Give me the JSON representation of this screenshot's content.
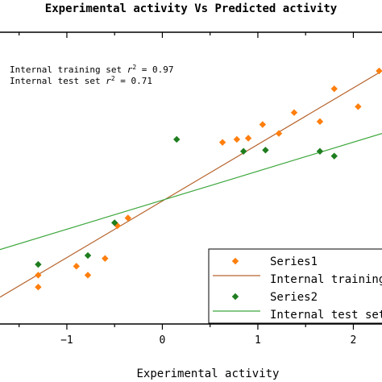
{
  "chart_data": {
    "type": "scatter",
    "title": "Experimental activity Vs Predicted activity",
    "xlabel": "Experimental activity",
    "ylabel": "",
    "xlim": [
      -1.7,
      2.3
    ],
    "ylim": [
      -2.2,
      2.7
    ],
    "x_ticks": [
      -1,
      0,
      1,
      2
    ],
    "x_tick_labels": [
      "−1",
      "0",
      "1",
      "2"
    ],
    "grid": false,
    "legend_position": "bottom-right",
    "annotations": [
      {
        "label": "Internal training set",
        "r2_text": "r",
        "value": "= 0.97"
      },
      {
        "label": "Internal test set",
        "r2_text": "r",
        "value": "= 0.71"
      }
    ],
    "series": [
      {
        "name": "Series1",
        "marker": "diamond",
        "color": "#ff7f0e",
        "points": [
          {
            "x": -1.3,
            "y": -1.58
          },
          {
            "x": -1.3,
            "y": -1.38
          },
          {
            "x": -0.9,
            "y": -1.23
          },
          {
            "x": -0.78,
            "y": -1.38
          },
          {
            "x": -0.6,
            "y": -1.1
          },
          {
            "x": -0.47,
            "y": -0.55
          },
          {
            "x": -0.36,
            "y": -0.42
          },
          {
            "x": 0.63,
            "y": 0.85
          },
          {
            "x": 0.78,
            "y": 0.9
          },
          {
            "x": 0.9,
            "y": 0.92
          },
          {
            "x": 1.05,
            "y": 1.15
          },
          {
            "x": 1.22,
            "y": 1.0
          },
          {
            "x": 1.38,
            "y": 1.35
          },
          {
            "x": 1.65,
            "y": 1.2
          },
          {
            "x": 1.8,
            "y": 1.75
          },
          {
            "x": 2.05,
            "y": 1.45
          },
          {
            "x": 2.27,
            "y": 2.05
          }
        ]
      },
      {
        "name": "Internal training set",
        "type": "line",
        "color": "#b8652e",
        "x": [
          -1.7,
          2.3
        ],
        "y": [
          -1.75,
          2.05
        ]
      },
      {
        "name": "Series2",
        "marker": "diamond",
        "color": "#1e7d1e",
        "points": [
          {
            "x": -1.3,
            "y": -1.2
          },
          {
            "x": -0.78,
            "y": -1.05
          },
          {
            "x": -0.5,
            "y": -0.5
          },
          {
            "x": 0.15,
            "y": 0.9
          },
          {
            "x": 0.85,
            "y": 0.7
          },
          {
            "x": 1.08,
            "y": 0.72
          },
          {
            "x": 1.65,
            "y": 0.7
          },
          {
            "x": 1.8,
            "y": 0.62
          }
        ]
      },
      {
        "name": "Internal test set",
        "type": "line",
        "color": "#3fa83f",
        "x": [
          -1.7,
          2.3
        ],
        "y": [
          -0.95,
          1.0
        ]
      }
    ],
    "legend": [
      {
        "kind": "marker",
        "label": "Series1",
        "color": "#ff7f0e"
      },
      {
        "kind": "line",
        "label": "Internal training set",
        "color": "#b8652e"
      },
      {
        "kind": "marker",
        "label": "Series2",
        "color": "#1e7d1e"
      },
      {
        "kind": "line",
        "label": "Internal test set",
        "color": "#3fa83f"
      }
    ]
  }
}
